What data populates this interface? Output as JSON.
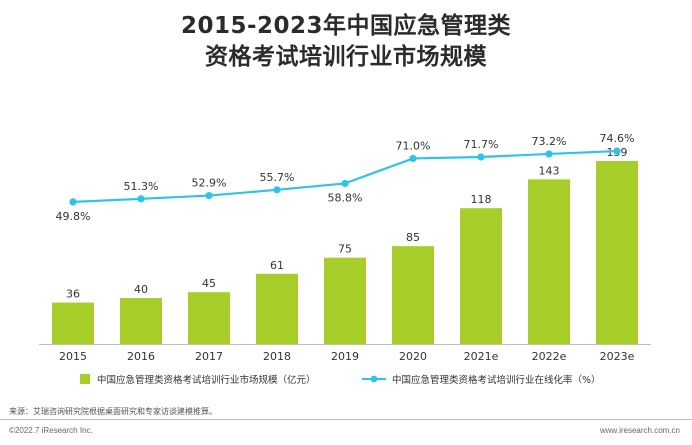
{
  "title_line1": "2015-2023年中国应急管理类",
  "title_line2": "资格考试培训行业市场规模",
  "chart_data": {
    "type": "bar",
    "categories": [
      "2015",
      "2016",
      "2017",
      "2018",
      "2019",
      "2020",
      "2021e",
      "2022e",
      "2023e"
    ],
    "series": [
      {
        "name": "中国应急管理类资格考试培训行业市场规模（亿元）",
        "kind": "bar",
        "values": [
          36,
          40,
          45,
          61,
          75,
          85,
          118,
          143,
          159
        ],
        "color": "#a6cd28"
      },
      {
        "name": "中国应急管理类资格考试培训行业在线化率（%）",
        "kind": "line",
        "values": [
          49.8,
          51.3,
          52.9,
          55.7,
          58.8,
          71.0,
          71.7,
          73.2,
          74.6
        ],
        "labels": [
          "49.8%",
          "51.3%",
          "52.9%",
          "55.7%",
          "58.8%",
          "71.0%",
          "71.7%",
          "73.2%",
          "74.6%"
        ],
        "color": "#2ec4ea"
      }
    ],
    "legend_position": "bottom"
  },
  "source_note": "来源：艾瑞咨询研究院根据桌面研究和专家访谈建模推算。",
  "copyright": "©2022.7 iResearch Inc.",
  "website": "www.iresearch.com.cn"
}
